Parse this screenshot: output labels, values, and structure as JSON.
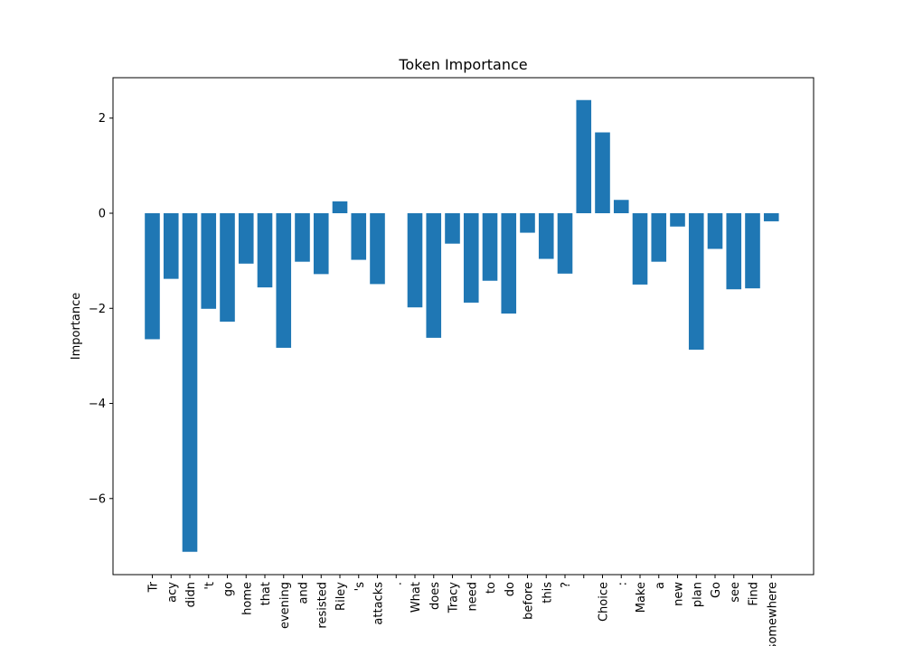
{
  "chart_data": {
    "type": "bar",
    "title": "Token Importance",
    "xlabel": "",
    "ylabel": "Importance",
    "ylim": [
      -7.6,
      2.85
    ],
    "yticks": [
      2,
      0,
      -2,
      -4,
      -6
    ],
    "ytick_labels": [
      "2",
      "0",
      "−2",
      "−4",
      "−6"
    ],
    "grid": false,
    "bar_color": "#1f77b4",
    "categories": [
      "Tr",
      "acy",
      "didn",
      "'t",
      "go",
      "home",
      "that",
      "evening",
      "and",
      "resisted",
      "Riley",
      "'s",
      "attacks",
      ".",
      "What",
      "does",
      "Tracy",
      "need",
      "to",
      "do",
      "before",
      "this",
      "?",
      "",
      "Choice",
      ":",
      "Make",
      "a",
      "new",
      "plan",
      "Go",
      "see",
      "Find",
      "somewhere"
    ],
    "values": [
      -2.65,
      -1.38,
      -7.12,
      -2.01,
      -2.28,
      -1.06,
      -1.56,
      -2.83,
      -1.02,
      -1.28,
      0.25,
      -0.98,
      -1.49,
      0.0,
      -1.98,
      -2.62,
      -0.64,
      -1.88,
      -1.42,
      -2.11,
      -0.41,
      -0.96,
      -1.27,
      2.38,
      1.7,
      0.28,
      -1.5,
      -1.02,
      -0.28,
      -2.87,
      -0.75,
      -1.6,
      -1.58,
      -0.17
    ]
  }
}
